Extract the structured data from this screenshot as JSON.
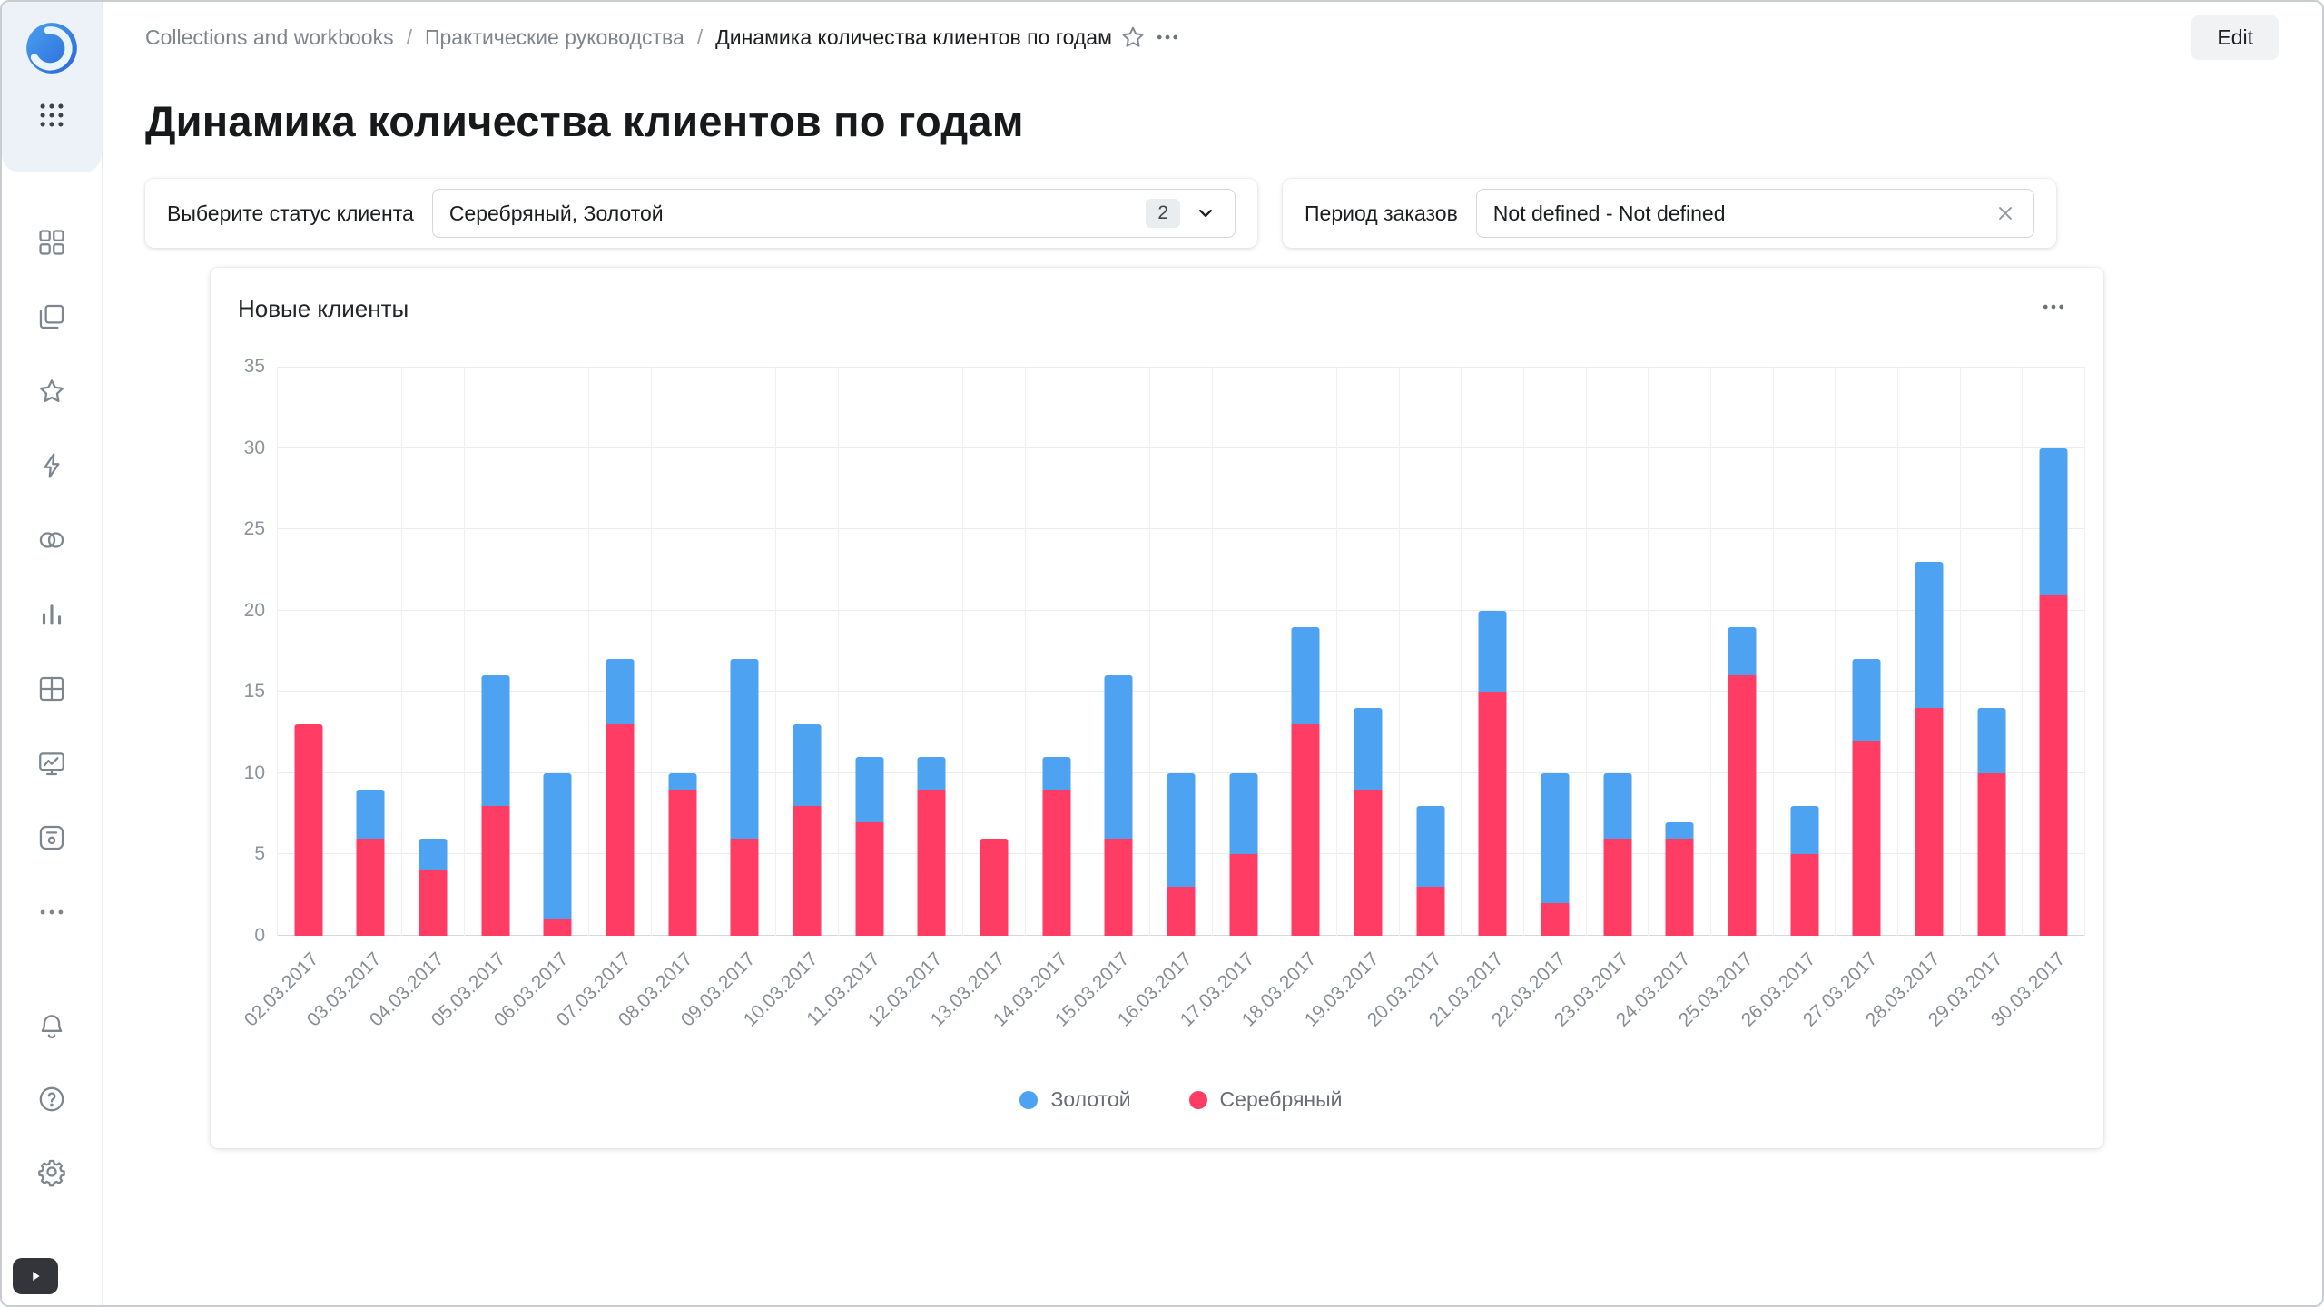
{
  "window": {
    "edit_button": "Edit"
  },
  "breadcrumb": {
    "items": [
      "Collections and workbooks",
      "Практические руководства",
      "Динамика количества клиентов по годам"
    ],
    "icons": [
      "favorite-star-icon",
      "more-menu-icon"
    ]
  },
  "page": {
    "title": "Динамика количества клиентов по годам"
  },
  "filters": {
    "status": {
      "label": "Выберите статус клиента",
      "value": "Серебряный, Золотой",
      "selected_count": "2",
      "icons": [
        "chevron-down-icon"
      ]
    },
    "period": {
      "label": "Период заказов",
      "value": "Not defined - Not defined",
      "icons": [
        "clear-icon"
      ]
    }
  },
  "chart": {
    "title": "Новые клиенты",
    "icons": [
      "more-menu-icon"
    ]
  },
  "chart_data": {
    "type": "bar",
    "stacked": true,
    "title": "Новые клиенты",
    "categories": [
      "02.03.2017",
      "03.03.2017",
      "04.03.2017",
      "05.03.2017",
      "06.03.2017",
      "07.03.2017",
      "08.03.2017",
      "09.03.2017",
      "10.03.2017",
      "11.03.2017",
      "12.03.2017",
      "13.03.2017",
      "14.03.2017",
      "15.03.2017",
      "16.03.2017",
      "17.03.2017",
      "18.03.2017",
      "19.03.2017",
      "20.03.2017",
      "21.03.2017",
      "22.03.2017",
      "23.03.2017",
      "24.03.2017",
      "25.03.2017",
      "26.03.2017",
      "27.03.2017",
      "28.03.2017",
      "29.03.2017",
      "30.03.2017"
    ],
    "series": [
      {
        "name": "Золотой",
        "color": "#4DA2F1",
        "values": [
          0,
          3,
          2,
          8,
          9,
          4,
          1,
          11,
          5,
          4,
          2,
          0,
          2,
          10,
          7,
          5,
          6,
          5,
          5,
          5,
          8,
          4,
          1,
          3,
          3,
          5,
          9,
          4,
          9
        ]
      },
      {
        "name": "Серебряный",
        "color": "#FF3D64",
        "values": [
          13,
          6,
          4,
          8,
          1,
          13,
          9,
          6,
          8,
          7,
          9,
          6,
          9,
          6,
          3,
          5,
          13,
          9,
          3,
          15,
          2,
          6,
          6,
          16,
          5,
          12,
          14,
          10,
          21
        ]
      }
    ],
    "ylim": [
      0,
      35
    ],
    "yticks": [
      0,
      5,
      10,
      15,
      20,
      25,
      30,
      35
    ],
    "xlabel": "",
    "ylabel": "",
    "grid": true,
    "legend_position": "bottom"
  },
  "sidebar": {
    "icons": [
      "datalens-logo",
      "apps-grid-icon",
      "collections-icon",
      "workbooks-icon",
      "favorites-star-icon",
      "connections-icon",
      "datasets-icon",
      "charts-icon",
      "dashboards-icon",
      "editor-icon",
      "storage-icon",
      "more-icon",
      "bell-icon",
      "help-icon",
      "gear-icon",
      "expand-panel-icon"
    ]
  },
  "colors": {
    "gold_blue": "#4DA2F1",
    "silver_red": "#FF3D64",
    "logo_blue": "#2f7de1"
  }
}
